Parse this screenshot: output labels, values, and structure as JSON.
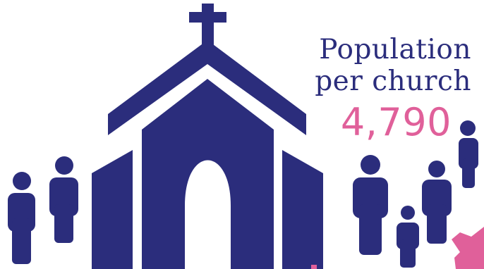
{
  "stat": {
    "label_line1": "Population",
    "label_line2": "per church",
    "value": "4,790"
  },
  "colors": {
    "primary": "#2b2d7c",
    "accent": "#e0609a"
  },
  "icons": [
    "church-icon",
    "cross-icon",
    "person-icon",
    "map-fragment-icon"
  ]
}
